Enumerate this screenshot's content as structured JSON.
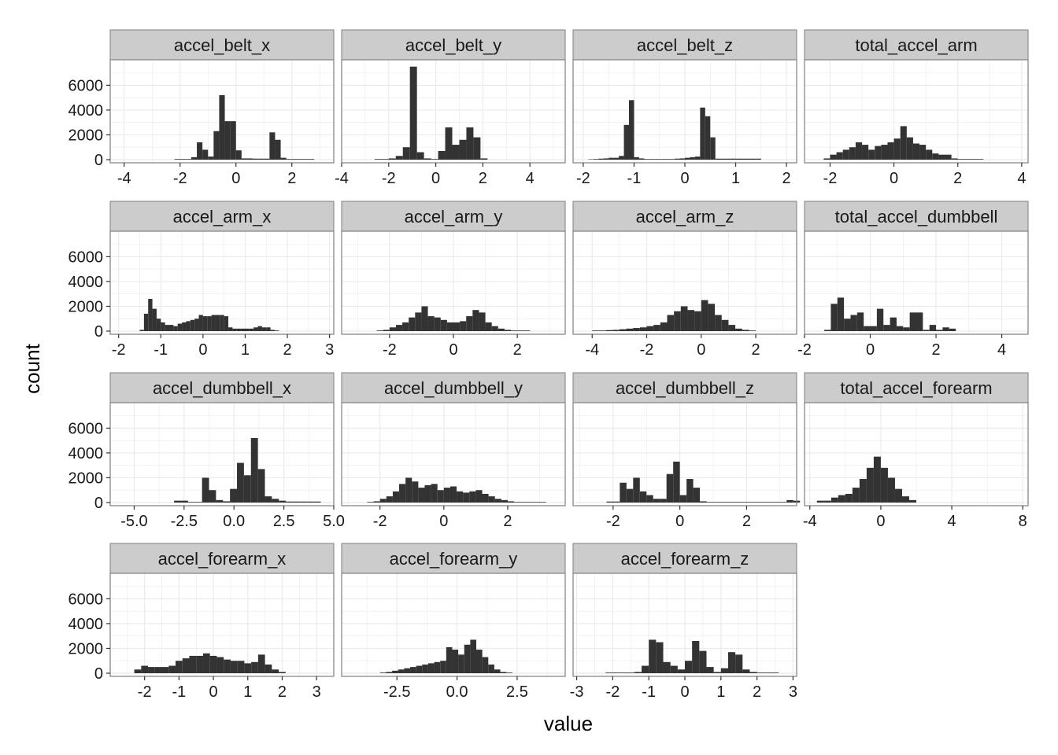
{
  "chart_data": {
    "type": "bar",
    "layout": "facet-grid-4-columns",
    "xlabel": "value",
    "ylabel": "count",
    "shared_y": {
      "ylim": [
        0,
        7800
      ],
      "ticks": [
        0,
        2000,
        4000,
        6000
      ],
      "tick_labels": [
        "0",
        "2000",
        "4000",
        "6000"
      ]
    },
    "colors": {
      "bar": "#333333",
      "strip_bg": "#cccccc",
      "strip_border": "#7f7f7f",
      "panel_bg": "#ffffff",
      "grid": "#ebebeb",
      "panel_border": "#7f7f7f"
    },
    "grid": true,
    "panels": [
      {
        "title": "accel_belt_x",
        "xlim": [
          -4.5,
          3.5
        ],
        "xticks": [
          -4,
          -2,
          0,
          2
        ],
        "xtick_labels": [
          "-4",
          "-2",
          "0",
          "2"
        ],
        "bin_start": -2.2,
        "bin_width": 0.2,
        "counts": [
          50,
          50,
          50,
          200,
          1400,
          800,
          250,
          2300,
          5200,
          3100,
          3100,
          750,
          100,
          100,
          80,
          80,
          80,
          2200,
          1600,
          150,
          50,
          50,
          50,
          50,
          50
        ]
      },
      {
        "title": "accel_belt_y",
        "xlim": [
          -4,
          5.5
        ],
        "xticks": [
          -4,
          -2,
          0,
          2,
          4
        ],
        "xtick_labels": [
          "-4",
          "-2",
          "0",
          "2",
          "4"
        ],
        "bin_start": -2.6,
        "bin_width": 0.3,
        "counts": [
          50,
          50,
          100,
          300,
          1000,
          7500,
          600,
          100,
          50,
          700,
          2600,
          1200,
          1600,
          2600,
          1800,
          100
        ]
      },
      {
        "title": "accel_belt_z",
        "xlim": [
          -2.2,
          2.2
        ],
        "xticks": [
          -2,
          -1,
          0,
          1,
          2
        ],
        "xtick_labels": [
          "-2",
          "-1",
          "0",
          "1",
          "2"
        ],
        "bin_start": -1.9,
        "bin_width": 0.1,
        "counts": [
          30,
          50,
          80,
          100,
          150,
          150,
          300,
          2800,
          4800,
          200,
          100,
          50,
          50,
          50,
          50,
          50,
          50,
          80,
          100,
          150,
          200,
          250,
          4200,
          3500,
          1800,
          80,
          80,
          80,
          80,
          80,
          80,
          80,
          80,
          80
        ]
      },
      {
        "title": "total_accel_arm",
        "xlim": [
          -2.8,
          4.2
        ],
        "xticks": [
          -2,
          0,
          2,
          4
        ],
        "xtick_labels": [
          "-2",
          "0",
          "2",
          "4"
        ],
        "bin_start": -2.2,
        "bin_width": 0.2,
        "counts": [
          100,
          400,
          600,
          800,
          1000,
          1400,
          1200,
          800,
          1100,
          1200,
          1400,
          1700,
          2700,
          1800,
          1300,
          1200,
          800,
          500,
          400,
          400,
          100,
          50,
          50,
          50,
          50
        ]
      },
      {
        "title": "accel_arm_x",
        "xlim": [
          -2.2,
          3.1
        ],
        "xticks": [
          -2,
          -1,
          0,
          1,
          2,
          3
        ],
        "xtick_labels": [
          "-2",
          "-1",
          "0",
          "1",
          "2",
          "3"
        ],
        "bin_start": -1.5,
        "bin_width": 0.1,
        "counts": [
          100,
          1400,
          2600,
          1800,
          1000,
          700,
          500,
          500,
          400,
          600,
          700,
          800,
          900,
          1000,
          1300,
          1200,
          1200,
          1300,
          1300,
          1300,
          1200,
          300,
          200,
          200,
          200,
          200,
          200,
          300,
          400,
          300,
          300,
          100,
          50
        ]
      },
      {
        "title": "accel_arm_y",
        "xlim": [
          -3.5,
          3.5
        ],
        "xticks": [
          -2,
          0,
          2
        ],
        "xtick_labels": [
          "-2",
          "0",
          "2"
        ],
        "bin_start": -2.4,
        "bin_width": 0.2,
        "counts": [
          50,
          100,
          300,
          500,
          700,
          1100,
          1500,
          2000,
          1200,
          1100,
          900,
          700,
          700,
          800,
          1200,
          1700,
          1500,
          700,
          400,
          200,
          100,
          50,
          50,
          50
        ]
      },
      {
        "title": "accel_arm_z",
        "xlim": [
          -4.7,
          3.5
        ],
        "xticks": [
          -4,
          -2,
          0,
          2
        ],
        "xtick_labels": [
          "-4",
          "-2",
          "0",
          "2"
        ],
        "bin_start": -4.0,
        "bin_width": 0.25,
        "counts": [
          50,
          50,
          80,
          100,
          150,
          200,
          250,
          300,
          400,
          500,
          700,
          1300,
          1600,
          2000,
          1700,
          1600,
          2500,
          2200,
          1300,
          900,
          500,
          200,
          100,
          50
        ]
      },
      {
        "title": "total_accel_dumbbell",
        "xlim": [
          -2,
          4.8
        ],
        "xticks": [
          -2,
          0,
          2,
          4
        ],
        "xtick_labels": [
          "-2",
          "0",
          "2",
          "4"
        ],
        "bin_start": -1.4,
        "bin_width": 0.2,
        "counts": [
          100,
          2200,
          2700,
          1000,
          1300,
          1500,
          400,
          400,
          1800,
          500,
          1100,
          400,
          300,
          1500,
          1500,
          100,
          500,
          100,
          300,
          200
        ]
      },
      {
        "title": "accel_dumbbell_x",
        "xlim": [
          -6.2,
          5.0
        ],
        "xticks": [
          -5,
          -2.5,
          0,
          2.5,
          5
        ],
        "xtick_labels": [
          "-5.0",
          "-2.5",
          "0.0",
          "2.5",
          "5.0"
        ],
        "bin_start": -3.0,
        "bin_width": 0.35,
        "counts": [
          150,
          150,
          50,
          50,
          2000,
          1000,
          200,
          100,
          1100,
          3200,
          2200,
          5200,
          2700,
          500,
          300,
          150,
          80,
          80,
          80,
          80,
          80
        ]
      },
      {
        "title": "accel_dumbbell_y",
        "xlim": [
          -3.2,
          3.8
        ],
        "xticks": [
          -2,
          0,
          2
        ],
        "xtick_labels": [
          "-2",
          "0",
          "2"
        ],
        "bin_start": -2.4,
        "bin_width": 0.2,
        "counts": [
          50,
          100,
          300,
          500,
          900,
          1500,
          2000,
          1700,
          1200,
          1400,
          1500,
          1000,
          1200,
          1300,
          900,
          800,
          900,
          1000,
          700,
          500,
          300,
          200,
          100,
          50,
          50,
          50,
          50,
          50
        ]
      },
      {
        "title": "accel_dumbbell_z",
        "xlim": [
          -3.2,
          3.5
        ],
        "xticks": [
          -2,
          0,
          2
        ],
        "xtick_labels": [
          "-2",
          "0",
          "2"
        ],
        "bin_start": -2.2,
        "bin_width": 0.2,
        "counts": [
          80,
          80,
          1600,
          1100,
          2000,
          900,
          600,
          300,
          300,
          2300,
          3300,
          600,
          1900,
          1200,
          100,
          50,
          50,
          50,
          50,
          50,
          50,
          50,
          50,
          50,
          50,
          50,
          50,
          200,
          150
        ]
      },
      {
        "title": "total_accel_forearm",
        "xlim": [
          -4.3,
          8.3
        ],
        "xticks": [
          -4,
          0,
          4,
          8
        ],
        "xtick_labels": [
          "-4",
          "0",
          "4",
          "8"
        ],
        "bin_start": -3.6,
        "bin_width": 0.4,
        "counts": [
          150,
          150,
          400,
          600,
          700,
          1200,
          1900,
          2800,
          3700,
          2800,
          2000,
          1100,
          500,
          200
        ]
      },
      {
        "title": "accel_forearm_x",
        "xlim": [
          -3.0,
          3.5
        ],
        "xticks": [
          -2,
          -1,
          0,
          1,
          2,
          3
        ],
        "xtick_labels": [
          "-2",
          "-1",
          "0",
          "1",
          "2",
          "3"
        ],
        "bin_start": -2.3,
        "bin_width": 0.2,
        "counts": [
          300,
          600,
          500,
          500,
          500,
          600,
          1000,
          1200,
          1400,
          1400,
          1600,
          1400,
          1300,
          1100,
          1000,
          1000,
          800,
          900,
          1500,
          700,
          300,
          100
        ]
      },
      {
        "title": "accel_forearm_y",
        "xlim": [
          -4.8,
          4.5
        ],
        "xticks": [
          -2.5,
          0,
          2.5
        ],
        "xtick_labels": [
          "-2.5",
          "0.0",
          "2.5"
        ],
        "bin_start": -3.2,
        "bin_width": 0.25,
        "counts": [
          50,
          100,
          200,
          300,
          400,
          500,
          600,
          700,
          800,
          900,
          1000,
          2100,
          1900,
          1500,
          2300,
          2700,
          1900,
          1300,
          700,
          300,
          100,
          50
        ]
      },
      {
        "title": "accel_forearm_z",
        "xlim": [
          -3.1,
          3.1
        ],
        "xticks": [
          -3,
          -2,
          -1,
          0,
          1,
          2,
          3
        ],
        "xtick_labels": [
          "-3",
          "-2",
          "-1",
          "0",
          "1",
          "2",
          "3"
        ],
        "bin_start": -2.2,
        "bin_width": 0.2,
        "counts": [
          50,
          50,
          50,
          50,
          100,
          600,
          2700,
          2500,
          900,
          600,
          300,
          1000,
          2600,
          1800,
          500,
          100,
          400,
          1700,
          1500,
          300,
          100,
          50,
          50,
          50
        ]
      }
    ]
  }
}
